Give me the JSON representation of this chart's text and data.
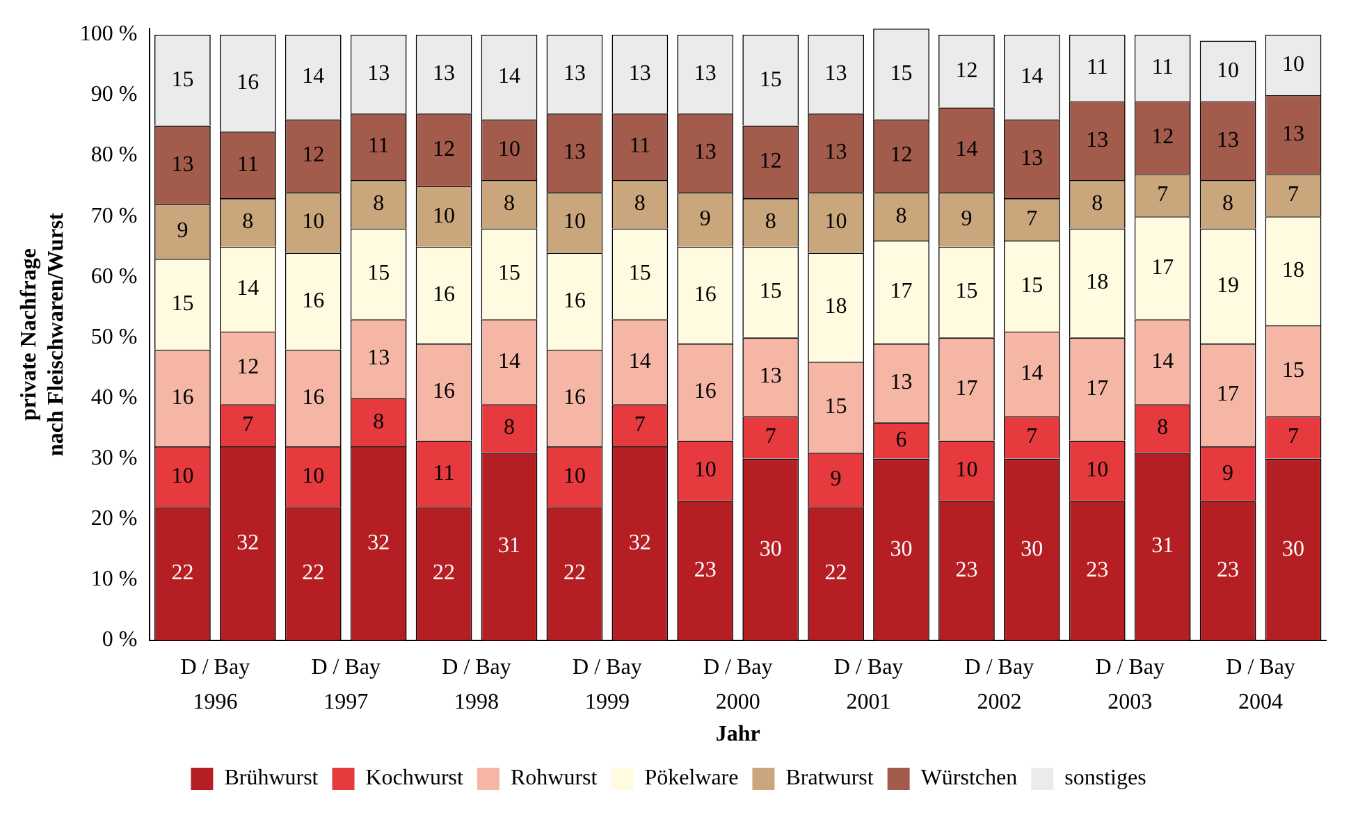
{
  "chart_data": {
    "type": "bar",
    "stacked": true,
    "xlabel": "Jahr",
    "ylabel": "private Nachfrage\nnach Fleischwaren/Wurst",
    "categories": [
      "D / Bay\n1996",
      null,
      "D / Bay\n1997",
      null,
      "D / Bay\n1998",
      null,
      "D / Bay\n1999",
      null,
      "D / Bay\n2000",
      null,
      "D / Bay\n2001",
      null,
      "D / Bay\n2002",
      null,
      "D / Bay\n2003",
      null,
      "D / Bay\n2004",
      null
    ],
    "series": [
      {
        "name": "Brühwurst",
        "color": "#b51f24",
        "values": [
          22,
          32,
          22,
          32,
          22,
          31,
          22,
          32,
          23,
          30,
          22,
          30,
          23,
          30,
          23,
          31,
          23,
          30
        ]
      },
      {
        "name": "Kochwurst",
        "color": "#e63a3e",
        "values": [
          10,
          7,
          10,
          8,
          11,
          8,
          10,
          7,
          10,
          7,
          9,
          6,
          10,
          7,
          10,
          8,
          9,
          7
        ]
      },
      {
        "name": "Rohwurst",
        "color": "#f6b6a6",
        "values": [
          16,
          12,
          16,
          13,
          16,
          14,
          16,
          14,
          16,
          13,
          15,
          13,
          17,
          14,
          17,
          14,
          17,
          15
        ]
      },
      {
        "name": "Pökelware",
        "color": "#fffbe1",
        "values": [
          15,
          14,
          16,
          15,
          16,
          15,
          16,
          15,
          16,
          15,
          18,
          17,
          15,
          15,
          18,
          17,
          19,
          18
        ]
      },
      {
        "name": "Bratwurst",
        "color": "#c9a67c",
        "values": [
          9,
          8,
          10,
          8,
          10,
          8,
          10,
          8,
          9,
          8,
          10,
          8,
          9,
          7,
          8,
          7,
          8,
          7
        ]
      },
      {
        "name": "Würstchen",
        "color": "#a35b4b",
        "values": [
          13,
          11,
          12,
          11,
          12,
          10,
          13,
          11,
          13,
          12,
          13,
          12,
          14,
          13,
          13,
          12,
          13,
          13
        ]
      },
      {
        "name": "sonstiges",
        "color": "#ebebeb",
        "values": [
          15,
          16,
          14,
          13,
          13,
          14,
          13,
          13,
          13,
          15,
          13,
          15,
          12,
          14,
          11,
          11,
          10,
          10
        ]
      }
    ],
    "ylim": [
      0,
      101
    ],
    "yticks": [
      {
        "value": 0,
        "label": "0 %"
      },
      {
        "value": 10,
        "label": "10 %"
      },
      {
        "value": 20,
        "label": "20 %"
      },
      {
        "value": 30,
        "label": "30 %"
      },
      {
        "value": 40,
        "label": "40 %"
      },
      {
        "value": 50,
        "label": "50 %"
      },
      {
        "value": 60,
        "label": "60 %"
      },
      {
        "value": 70,
        "label": "70 %"
      },
      {
        "value": 80,
        "label": "80 %"
      },
      {
        "value": 90,
        "label": "90 %"
      },
      {
        "value": 100,
        "label": "100 %"
      }
    ],
    "data_labels": true,
    "grid": false,
    "legend": "bottom"
  }
}
